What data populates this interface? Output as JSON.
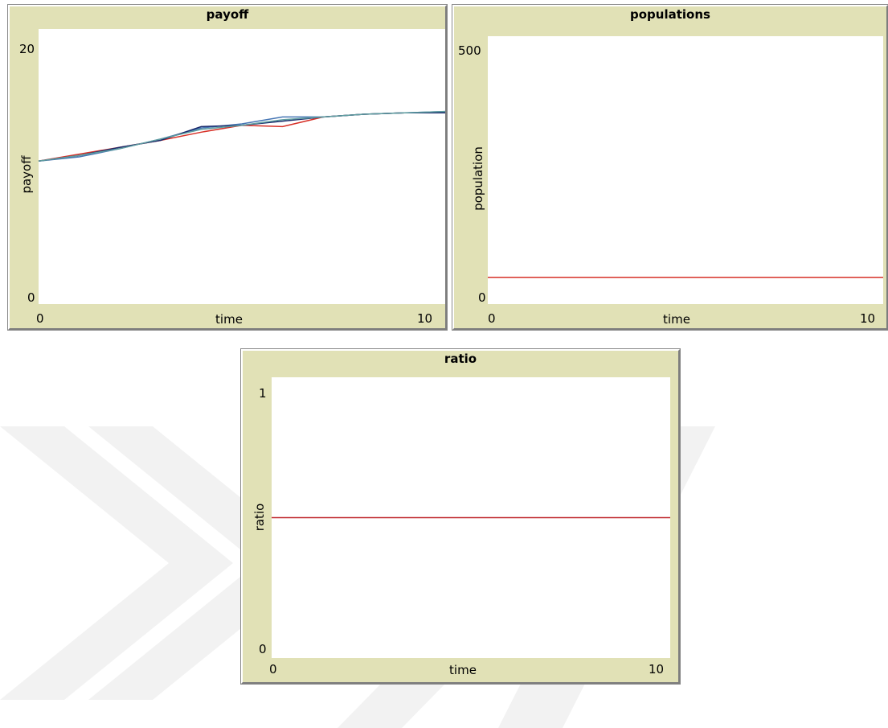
{
  "watermark_color": "#f2f2f2",
  "chart_data": [
    {
      "type": "line",
      "title": "payoff",
      "xlabel": "time",
      "ylabel": "payoff",
      "xlim": [
        0,
        10
      ],
      "ylim": [
        0,
        20
      ],
      "x_ticks": [
        "0",
        "10"
      ],
      "y_ticks": [
        "0",
        "20"
      ],
      "series": [
        {
          "color": "#d73027",
          "x": [
            0,
            1,
            2,
            3,
            4,
            5,
            6,
            7,
            8,
            9,
            10
          ],
          "y": [
            10.4,
            10.9,
            11.4,
            11.9,
            12.5,
            13.0,
            12.9,
            13.6,
            13.8,
            13.9,
            13.9
          ]
        },
        {
          "color": "#4575b4",
          "x": [
            0,
            1,
            2,
            3,
            4,
            5,
            6,
            7,
            8,
            9,
            10
          ],
          "y": [
            10.4,
            10.7,
            11.3,
            12.0,
            12.8,
            13.1,
            13.6,
            13.6,
            13.8,
            13.9,
            14.0
          ]
        },
        {
          "color": "#1a2a6c",
          "x": [
            0,
            1,
            2,
            3,
            4,
            5,
            6,
            7,
            8,
            9,
            10
          ],
          "y": [
            10.4,
            10.8,
            11.4,
            11.9,
            12.9,
            13.0,
            13.3,
            13.6,
            13.8,
            13.9,
            13.9
          ]
        },
        {
          "color": "#5f9ea0",
          "x": [
            0,
            1,
            2,
            3,
            4,
            5,
            6,
            7,
            8,
            9,
            10
          ],
          "y": [
            10.4,
            10.8,
            11.3,
            12.0,
            12.7,
            13.0,
            13.4,
            13.6,
            13.8,
            13.9,
            14.0
          ]
        }
      ]
    },
    {
      "type": "line",
      "title": "populations",
      "xlabel": "time",
      "ylabel": "population",
      "xlim": [
        0,
        10
      ],
      "ylim": [
        0,
        500
      ],
      "x_ticks": [
        "0",
        "10"
      ],
      "y_ticks": [
        "0",
        "500"
      ],
      "series": [
        {
          "color": "#d73027",
          "x": [
            0,
            10
          ],
          "y": [
            50,
            50
          ]
        }
      ]
    },
    {
      "type": "line",
      "title": "ratio",
      "xlabel": "time",
      "ylabel": "ratio",
      "xlim": [
        0,
        10
      ],
      "ylim": [
        0,
        1
      ],
      "x_ticks": [
        "0",
        "10"
      ],
      "y_ticks": [
        "0",
        "1"
      ],
      "series": [
        {
          "color": "#c0272d",
          "x": [
            0,
            10
          ],
          "y": [
            0.5,
            0.5
          ]
        }
      ]
    }
  ]
}
